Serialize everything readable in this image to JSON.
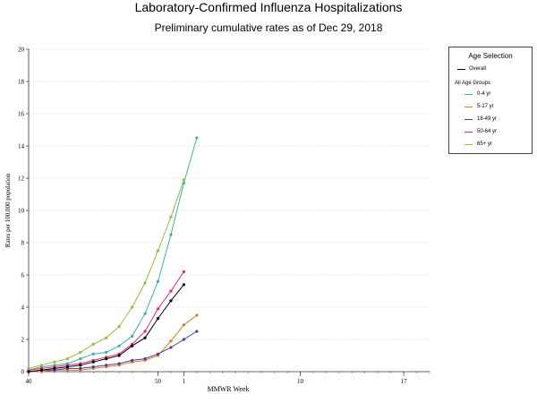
{
  "chart_data": {
    "type": "line",
    "title": "Laboratory-Confirmed Influenza Hospitalizations",
    "subtitle": "Preliminary cumulative rates as of Dec 29, 2018",
    "xlabel": "MMWR Week",
    "ylabel": "Rates per 100,000 population",
    "x_ticks": [
      "40",
      "50",
      "1",
      "10",
      "17"
    ],
    "ylim": [
      0,
      20
    ],
    "y_ticks": [
      0,
      2,
      4,
      6,
      8,
      10,
      12,
      14,
      16,
      18,
      20
    ],
    "grid": true,
    "legend": {
      "title": "Age Selection",
      "overall_label": "Overall",
      "group_heading": "All Age Groups",
      "placement": "right"
    },
    "series": [
      {
        "name": "0-4 yr",
        "color": "#3db39e",
        "values": [
          0.1,
          0.3,
          0.4,
          0.5,
          0.8,
          1.1,
          1.2,
          1.6,
          2.2,
          3.6,
          5.6,
          8.5,
          11.7,
          14.5
        ]
      },
      {
        "name": "5-17 yr",
        "color": "#e07b26",
        "values": [
          0.0,
          0.0,
          0.1,
          0.1,
          0.1,
          0.2,
          0.3,
          0.4,
          0.6,
          0.7,
          1.0,
          1.9,
          2.9,
          3.5
        ]
      },
      {
        "name": "18-49 yr",
        "color": "#4a3c9a",
        "values": [
          0.0,
          0.1,
          0.1,
          0.2,
          0.2,
          0.3,
          0.4,
          0.5,
          0.7,
          0.8,
          1.1,
          1.5,
          2.0,
          2.5
        ]
      },
      {
        "name": "50-64 yr",
        "color": "#e0267f",
        "values": [
          0.1,
          0.2,
          0.3,
          0.4,
          0.5,
          0.7,
          0.9,
          1.1,
          1.7,
          2.5,
          3.9,
          5.0,
          6.2
        ]
      },
      {
        "name": "65+ yr",
        "color": "#8fbf3c",
        "values": [
          0.2,
          0.4,
          0.6,
          0.8,
          1.2,
          1.7,
          2.1,
          2.8,
          4.0,
          5.5,
          7.5,
          9.6,
          11.9
        ]
      },
      {
        "name": "Overall",
        "color": "#000000",
        "values": [
          0.0,
          0.1,
          0.2,
          0.3,
          0.4,
          0.6,
          0.8,
          1.0,
          1.6,
          2.1,
          3.3,
          4.4,
          5.4
        ]
      }
    ]
  }
}
